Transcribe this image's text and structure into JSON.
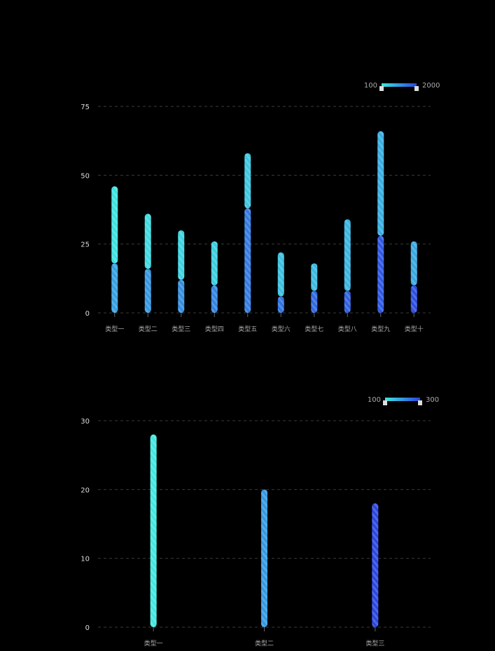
{
  "chart_data": [
    {
      "type": "bar",
      "stacked": true,
      "categories": [
        "类型一",
        "类型二",
        "类型三",
        "类型四",
        "类型五",
        "类型六",
        "类型七",
        "类型八",
        "类型九",
        "类型十"
      ],
      "series": [
        {
          "values": [
            18,
            16,
            12,
            10,
            38,
            6,
            8,
            8,
            28,
            10
          ]
        },
        {
          "values": [
            28,
            20,
            18,
            16,
            20,
            16,
            10,
            26,
            38,
            16
          ]
        }
      ],
      "yticks": [
        "0",
        "25",
        "50",
        "75"
      ],
      "ylim": [
        0,
        75
      ],
      "grid": true,
      "visual_map": {
        "min_label": "100",
        "max_label": "2000",
        "colors": [
          "#3ee8e0",
          "#2a45e0"
        ],
        "placement": "top-right"
      }
    },
    {
      "type": "bar",
      "categories": [
        "类型一",
        "类型二",
        "类型三"
      ],
      "series": [
        {
          "values": [
            28,
            20,
            18
          ]
        }
      ],
      "yticks": [
        "0",
        "10",
        "20",
        "30"
      ],
      "ylim": [
        0,
        30
      ],
      "grid": true,
      "visual_map": {
        "min_label": "100",
        "max_label": "300",
        "colors": [
          "#3ee8e0",
          "#2a45e0"
        ],
        "placement": "top-right"
      }
    }
  ]
}
